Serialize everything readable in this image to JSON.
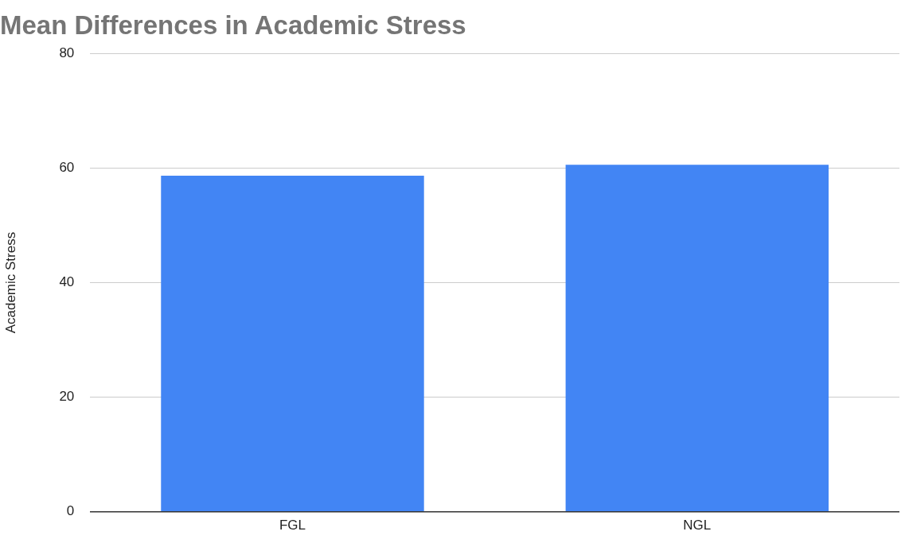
{
  "chart_data": {
    "type": "bar",
    "title": "Mean Differences in Academic Stress",
    "ylabel": "Academic Stress",
    "categories": [
      "FGL",
      "NGL"
    ],
    "values": [
      58.7,
      60.6
    ],
    "color": "#4285f4",
    "ylim": [
      0,
      80
    ],
    "yticks": [
      0,
      20,
      40,
      60,
      80
    ],
    "grid": "y",
    "legend": false
  }
}
